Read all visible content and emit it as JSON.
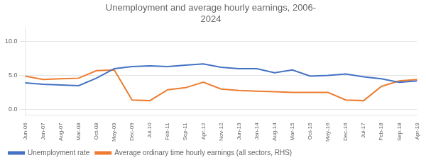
{
  "chart_data": {
    "type": "line",
    "title": "Unemployment and average hourly earnings, 2006-\n2024",
    "categories": [
      "Jun-06",
      "Jan-07",
      "Aug-07",
      "Mar-08",
      "Oct-08",
      "May-09",
      "Dec-09",
      "Jul-10",
      "Feb-11",
      "Sep-11",
      "Apr-12",
      "Nov-12",
      "Jun-13",
      "Jan-14",
      "Aug-14",
      "Mar-15",
      "Oct-15",
      "May-16",
      "Dec-16",
      "Jul-17",
      "Feb-18",
      "Sep-18",
      "Apr-19"
    ],
    "series": [
      {
        "name": "Unemployment rate",
        "color": "#4472c4",
        "values": [
          3.9,
          3.7,
          3.6,
          3.5,
          4.6,
          6.0,
          6.3,
          6.4,
          6.3,
          6.5,
          6.7,
          6.2,
          6.0,
          6.0,
          5.4,
          5.8,
          4.9,
          5.0,
          5.2,
          4.8,
          4.5,
          4.0,
          4.2
        ]
      },
      {
        "name": "Average ordinary time hourly earnings (all sectors, RHS)",
        "color": "#ed7d31",
        "values": [
          4.9,
          4.4,
          4.5,
          4.6,
          5.7,
          5.8,
          1.4,
          1.3,
          2.9,
          3.2,
          4.0,
          3.0,
          2.8,
          2.7,
          2.6,
          2.5,
          2.5,
          2.5,
          1.4,
          1.3,
          3.4,
          4.2,
          4.4
        ]
      }
    ],
    "ylim": [
      -0.8,
      12.0
    ],
    "yticks": [
      {
        "value": 0,
        "label": "0.0"
      },
      {
        "value": 5,
        "label": "5.0"
      },
      {
        "value": 10,
        "label": "10.0"
      }
    ],
    "grid": true,
    "legend": "lower left"
  }
}
